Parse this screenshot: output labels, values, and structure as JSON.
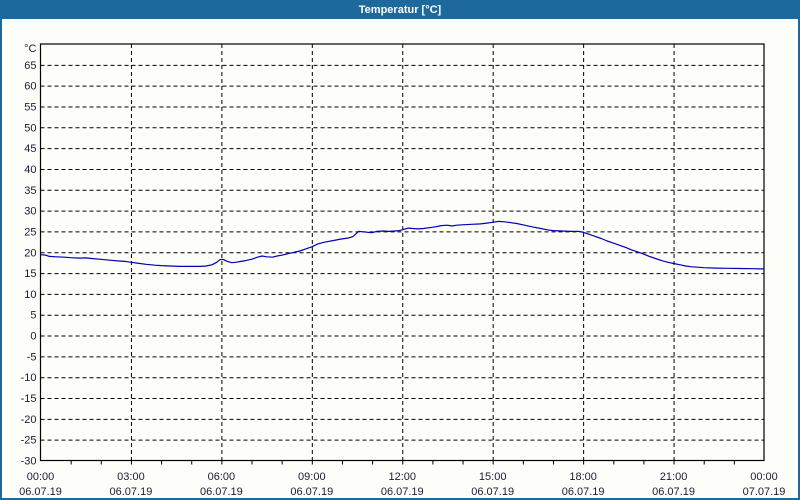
{
  "window": {
    "title": "Temperatur [°C]",
    "titlebar_color": "#1E699C",
    "border_color": "#1E699C",
    "background_color": "#FDFEFA"
  },
  "chart_data": {
    "type": "line",
    "title": "Temperatur [°C]",
    "y_unit_label": "°C",
    "ylim": [
      -30,
      70
    ],
    "y_tick_step": 5,
    "y_ticks": [
      65,
      60,
      55,
      50,
      45,
      40,
      35,
      30,
      25,
      20,
      15,
      10,
      5,
      0,
      -5,
      -10,
      -15,
      -20,
      -25,
      -30
    ],
    "x_hours_range": [
      0,
      24
    ],
    "x_major_step_hours": 3,
    "x_minor_step_hours": 1,
    "x_ticks": [
      {
        "hour": 0,
        "time": "00:00",
        "date": "06.07.19"
      },
      {
        "hour": 3,
        "time": "03:00",
        "date": "06.07.19"
      },
      {
        "hour": 6,
        "time": "06:00",
        "date": "06.07.19"
      },
      {
        "hour": 9,
        "time": "09:00",
        "date": "06.07.19"
      },
      {
        "hour": 12,
        "time": "12:00",
        "date": "06.07.19"
      },
      {
        "hour": 15,
        "time": "15:00",
        "date": "06.07.19"
      },
      {
        "hour": 18,
        "time": "18:00",
        "date": "06.07.19"
      },
      {
        "hour": 21,
        "time": "21:00",
        "date": "06.07.19"
      },
      {
        "hour": 24,
        "time": "00:00",
        "date": "07.07.19"
      }
    ],
    "grid_style": "dashed",
    "grid_color": "#000000",
    "axis_color": "#000000",
    "label_color": "#1B1B35",
    "line_color": "#0000B4",
    "series": [
      {
        "name": "Temperatur",
        "points": [
          [
            0.0,
            19.4
          ],
          [
            0.15,
            19.35
          ],
          [
            0.3,
            19.0
          ],
          [
            0.5,
            18.9
          ],
          [
            0.8,
            18.8
          ],
          [
            1.0,
            18.7
          ],
          [
            1.3,
            18.6
          ],
          [
            1.5,
            18.65
          ],
          [
            1.7,
            18.5
          ],
          [
            2.0,
            18.3
          ],
          [
            2.3,
            18.1
          ],
          [
            2.6,
            17.9
          ],
          [
            2.8,
            17.8
          ],
          [
            3.0,
            17.6
          ],
          [
            3.2,
            17.4
          ],
          [
            3.5,
            17.1
          ],
          [
            3.8,
            16.9
          ],
          [
            4.0,
            16.8
          ],
          [
            4.3,
            16.7
          ],
          [
            4.6,
            16.6
          ],
          [
            5.0,
            16.6
          ],
          [
            5.3,
            16.6
          ],
          [
            5.5,
            16.7
          ],
          [
            5.7,
            17.0
          ],
          [
            5.85,
            17.6
          ],
          [
            5.95,
            18.2
          ],
          [
            6.05,
            18.3
          ],
          [
            6.2,
            17.8
          ],
          [
            6.35,
            17.5
          ],
          [
            6.5,
            17.6
          ],
          [
            6.65,
            17.8
          ],
          [
            6.8,
            18.0
          ],
          [
            7.0,
            18.3
          ],
          [
            7.2,
            18.8
          ],
          [
            7.35,
            19.1
          ],
          [
            7.5,
            18.9
          ],
          [
            7.7,
            18.8
          ],
          [
            7.85,
            19.1
          ],
          [
            8.0,
            19.3
          ],
          [
            8.3,
            19.8
          ],
          [
            8.6,
            20.3
          ],
          [
            8.8,
            20.8
          ],
          [
            9.0,
            21.3
          ],
          [
            9.2,
            22.0
          ],
          [
            9.4,
            22.4
          ],
          [
            9.7,
            22.8
          ],
          [
            10.0,
            23.2
          ],
          [
            10.2,
            23.4
          ],
          [
            10.35,
            23.7
          ],
          [
            10.45,
            24.3
          ],
          [
            10.55,
            25.0
          ],
          [
            10.7,
            24.9
          ],
          [
            10.85,
            24.8
          ],
          [
            11.0,
            24.7
          ],
          [
            11.15,
            25.0
          ],
          [
            11.35,
            25.1
          ],
          [
            11.55,
            25.0
          ],
          [
            11.75,
            25.1
          ],
          [
            11.9,
            25.2
          ],
          [
            12.0,
            25.4
          ],
          [
            12.2,
            25.8
          ],
          [
            12.35,
            25.7
          ],
          [
            12.5,
            25.6
          ],
          [
            12.7,
            25.7
          ],
          [
            12.9,
            25.9
          ],
          [
            13.1,
            26.1
          ],
          [
            13.3,
            26.4
          ],
          [
            13.5,
            26.5
          ],
          [
            13.65,
            26.3
          ],
          [
            13.8,
            26.5
          ],
          [
            14.0,
            26.6
          ],
          [
            14.3,
            26.7
          ],
          [
            14.6,
            26.8
          ],
          [
            14.8,
            27.0
          ],
          [
            15.0,
            27.2
          ],
          [
            15.2,
            27.4
          ],
          [
            15.4,
            27.3
          ],
          [
            15.6,
            27.1
          ],
          [
            15.8,
            26.9
          ],
          [
            16.0,
            26.6
          ],
          [
            16.3,
            26.1
          ],
          [
            16.6,
            25.7
          ],
          [
            16.8,
            25.4
          ],
          [
            17.0,
            25.2
          ],
          [
            17.3,
            25.1
          ],
          [
            17.6,
            25.0
          ],
          [
            17.85,
            25.0
          ],
          [
            18.0,
            24.8
          ],
          [
            18.2,
            24.3
          ],
          [
            18.4,
            23.8
          ],
          [
            18.6,
            23.3
          ],
          [
            18.8,
            22.7
          ],
          [
            19.0,
            22.2
          ],
          [
            19.2,
            21.7
          ],
          [
            19.4,
            21.2
          ],
          [
            19.6,
            20.6
          ],
          [
            19.8,
            20.1
          ],
          [
            20.0,
            19.6
          ],
          [
            20.2,
            19.0
          ],
          [
            20.4,
            18.5
          ],
          [
            20.6,
            18.0
          ],
          [
            20.8,
            17.6
          ],
          [
            21.0,
            17.3
          ],
          [
            21.2,
            17.0
          ],
          [
            21.4,
            16.7
          ],
          [
            21.6,
            16.5
          ],
          [
            21.8,
            16.4
          ],
          [
            22.0,
            16.3
          ],
          [
            22.4,
            16.2
          ],
          [
            22.8,
            16.15
          ],
          [
            23.2,
            16.1
          ],
          [
            23.6,
            16.05
          ],
          [
            24.0,
            16.0
          ]
        ]
      }
    ]
  }
}
